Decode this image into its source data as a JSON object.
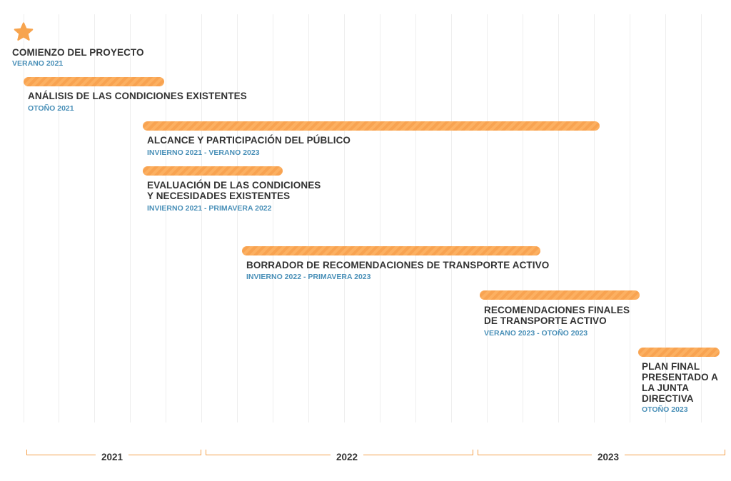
{
  "milestone": {
    "icon": "star-icon",
    "title": "COMIENZO DEL PROYECTO",
    "date": "VERANO 2021"
  },
  "phases": [
    {
      "title_lines": [
        "ANÁLISIS DE LAS CONDICIONES EXISTENTES"
      ],
      "date": "OTOÑO 2021"
    },
    {
      "title_lines": [
        "ALCANCE Y PARTICIPACIÓN DEL PÚBLICO"
      ],
      "date": "INVIERNO 2021 - VERANO 2023"
    },
    {
      "title_lines": [
        "EVALUACIÓN DE LAS CONDICIONES",
        "Y NECESIDADES EXISTENTES"
      ],
      "date": "INVIERNO 2021 - PRIMAVERA 2022"
    },
    {
      "title_lines": [
        "BORRADOR DE RECOMENDACIONES DE TRANSPORTE ACTIVO"
      ],
      "date": "INVIERNO 2022 - PRIMAVERA 2023"
    },
    {
      "title_lines": [
        "RECOMENDACIONES FINALES",
        "DE TRANSPORTE ACTIVO"
      ],
      "date": "VERANO 2023 - OTOÑO 2023"
    },
    {
      "title_lines": [
        "PLAN FINAL",
        "PRESENTADO A",
        "LA JUNTA",
        "DIRECTIVA"
      ],
      "date": "OTOÑO 2023"
    }
  ],
  "years": [
    "2021",
    "2022",
    "2023"
  ],
  "colors": {
    "bar": "#f8a351",
    "star": "#f7a44e",
    "title": "#333333",
    "date": "#4a90b8",
    "gridline": "#eeeeee"
  }
}
